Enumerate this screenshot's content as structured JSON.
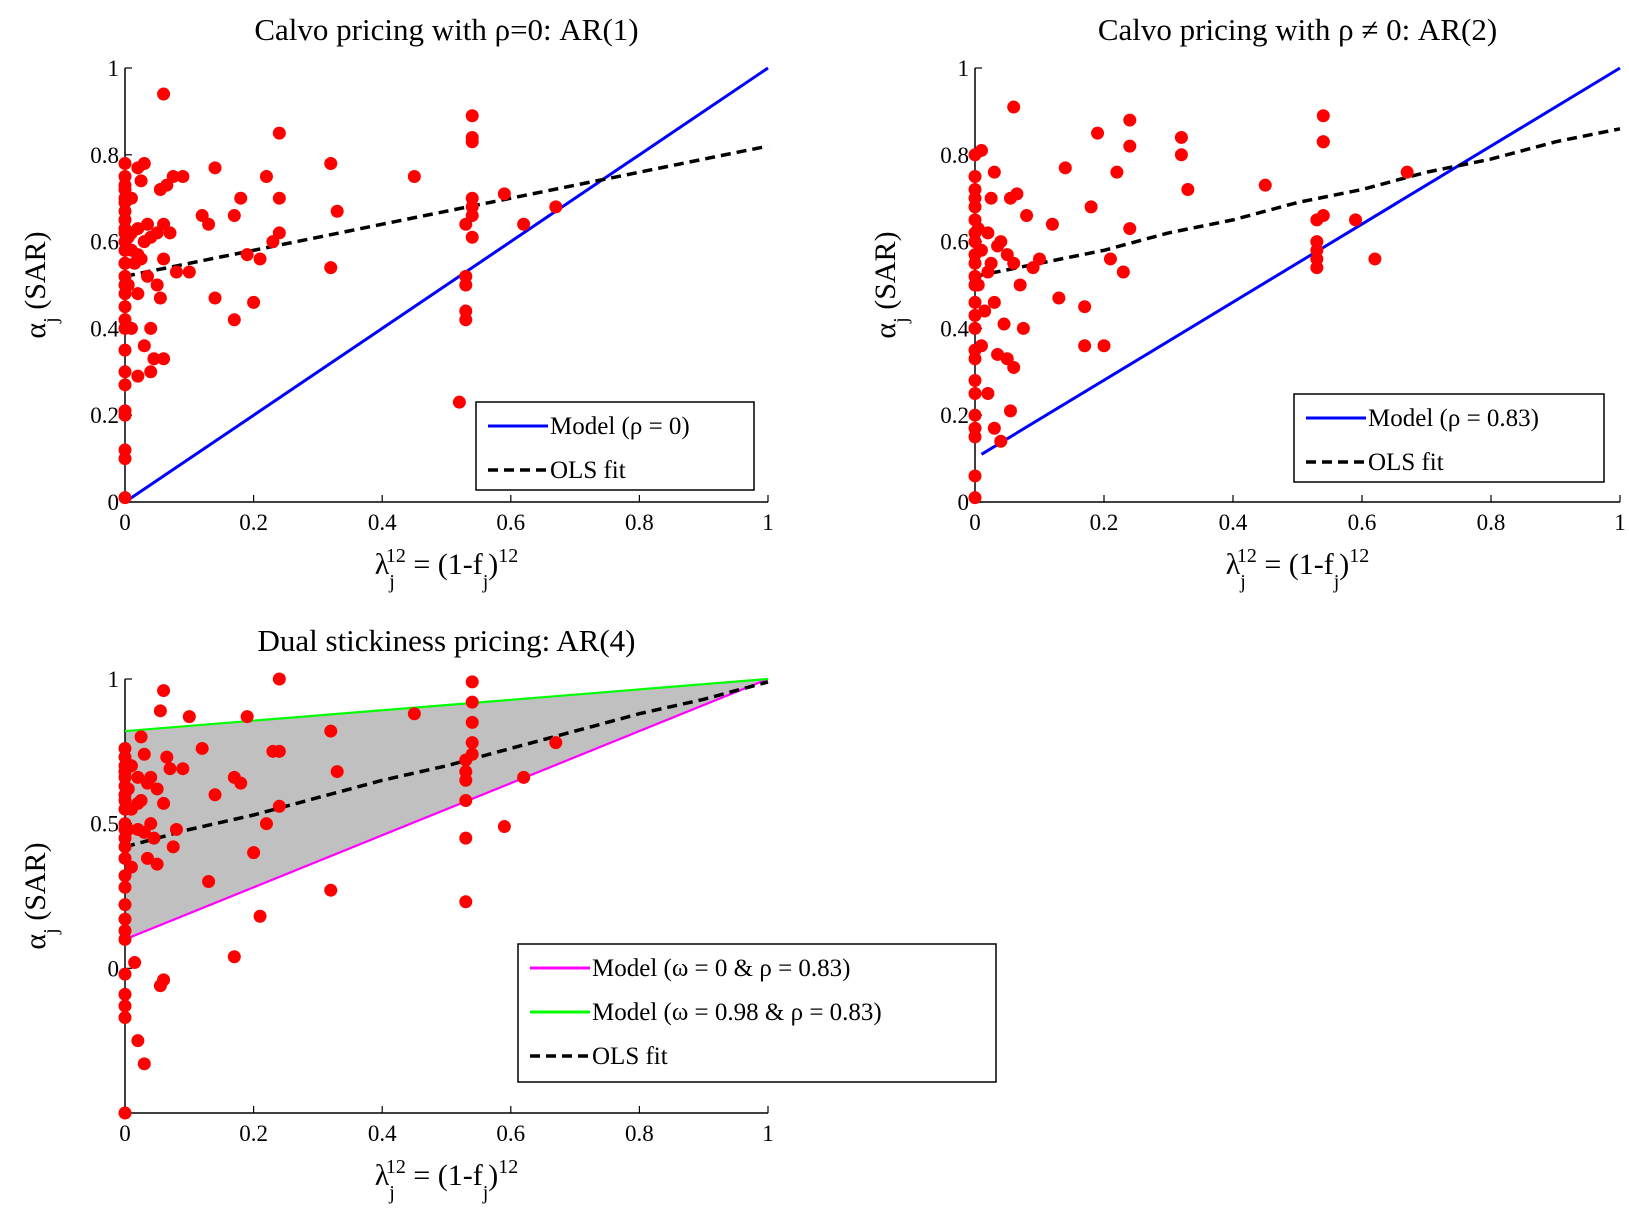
{
  "chart_data": [
    {
      "type": "scatter",
      "title": "Calvo pricing with ρ=0: AR(1)",
      "xlabel": {
        "sym": "λ",
        "sub": "j",
        "sup": "12",
        "mid": " = (1-f",
        "sub2": "j",
        "end": ")",
        "sup2": "12"
      },
      "ylabel": {
        "sym": "α",
        "sub": "j",
        "rest": " (SAR)"
      },
      "xlim": [
        0,
        1
      ],
      "ylim": [
        0,
        1
      ],
      "xticks": [
        "0",
        "0.2",
        "0.4",
        "0.6",
        "0.8",
        "1"
      ],
      "yticks": [
        "0",
        "0.2",
        "0.4",
        "0.6",
        "0.8",
        "1"
      ],
      "legend_position": "lower-right",
      "series": [
        {
          "name": "Model (ρ = 0)",
          "kind": "line",
          "color": "#0000ff",
          "x": [
            0,
            1
          ],
          "y": [
            0,
            1
          ]
        },
        {
          "name": "OLS fit",
          "kind": "dashed",
          "color": "#000000",
          "x": [
            0,
            0.1,
            0.2,
            0.3,
            0.4,
            0.5,
            0.6,
            0.7,
            0.8,
            0.9,
            1.0
          ],
          "y": [
            0.52,
            0.55,
            0.58,
            0.61,
            0.64,
            0.67,
            0.7,
            0.73,
            0.76,
            0.79,
            0.82
          ]
        },
        {
          "name": "",
          "kind": "points",
          "color": "#ff0000",
          "x": [
            0,
            0,
            0,
            0,
            0,
            0,
            0,
            0,
            0,
            0,
            0,
            0,
            0,
            0,
            0,
            0,
            0,
            0,
            0,
            0,
            0,
            0,
            0,
            0,
            0,
            0,
            0,
            0,
            0.005,
            0.005,
            0.01,
            0.01,
            0.01,
            0.01,
            0.015,
            0.02,
            0.02,
            0.02,
            0.02,
            0.02,
            0.025,
            0.025,
            0.03,
            0.03,
            0.03,
            0.035,
            0.035,
            0.04,
            0.04,
            0.04,
            0.045,
            0.05,
            0.05,
            0.055,
            0.055,
            0.06,
            0.06,
            0.06,
            0.06,
            0.065,
            0.07,
            0.075,
            0.08,
            0.09,
            0.1,
            0.12,
            0.13,
            0.14,
            0.14,
            0.17,
            0.17,
            0.18,
            0.19,
            0.2,
            0.21,
            0.22,
            0.23,
            0.24,
            0.24,
            0.24,
            0.32,
            0.32,
            0.33,
            0.45,
            0.52,
            0.53,
            0.53,
            0.53,
            0.53,
            0.53,
            0.54,
            0.54,
            0.54,
            0.54,
            0.54,
            0.54,
            0.54,
            0.59,
            0.62,
            0.67
          ],
          "y": [
            0.01,
            0.1,
            0.12,
            0.2,
            0.21,
            0.27,
            0.3,
            0.35,
            0.4,
            0.42,
            0.48,
            0.5,
            0.52,
            0.55,
            0.58,
            0.6,
            0.62,
            0.65,
            0.67,
            0.7,
            0.72,
            0.75,
            0.78,
            0.45,
            0.55,
            0.63,
            0.69,
            0.73,
            0.5,
            0.61,
            0.4,
            0.58,
            0.62,
            0.7,
            0.55,
            0.29,
            0.48,
            0.57,
            0.63,
            0.77,
            0.56,
            0.74,
            0.36,
            0.6,
            0.78,
            0.52,
            0.64,
            0.3,
            0.4,
            0.61,
            0.33,
            0.5,
            0.62,
            0.47,
            0.72,
            0.33,
            0.56,
            0.64,
            0.94,
            0.73,
            0.62,
            0.75,
            0.53,
            0.75,
            0.53,
            0.66,
            0.64,
            0.47,
            0.77,
            0.42,
            0.66,
            0.7,
            0.57,
            0.46,
            0.56,
            0.75,
            0.6,
            0.62,
            0.7,
            0.85,
            0.54,
            0.78,
            0.67,
            0.75,
            0.23,
            0.42,
            0.44,
            0.5,
            0.52,
            0.64,
            0.61,
            0.66,
            0.68,
            0.7,
            0.83,
            0.84,
            0.89,
            0.71,
            0.64,
            0.68
          ]
        }
      ]
    },
    {
      "type": "scatter",
      "title": "Calvo pricing with ρ ≠ 0: AR(2)",
      "xlabel": {
        "sym": "λ",
        "sub": "j",
        "sup": "12",
        "mid": " = (1-f",
        "sub2": "j",
        "end": ")",
        "sup2": "12"
      },
      "ylabel": {
        "sym": "α",
        "sub": "j",
        "rest": " (SAR)"
      },
      "xlim": [
        0,
        1
      ],
      "ylim": [
        0,
        1
      ],
      "xticks": [
        "0",
        "0.2",
        "0.4",
        "0.6",
        "0.8",
        "1"
      ],
      "yticks": [
        "0",
        "0.2",
        "0.4",
        "0.6",
        "0.8",
        "1"
      ],
      "legend_position": "lower-right",
      "series": [
        {
          "name": "Model (ρ = 0.83)",
          "kind": "line",
          "color": "#0000ff",
          "x": [
            0.01,
            1
          ],
          "y": [
            0.11,
            1
          ]
        },
        {
          "name": "OLS fit",
          "kind": "dashed",
          "color": "#000000",
          "x": [
            0,
            0.1,
            0.2,
            0.3,
            0.4,
            0.5,
            0.6,
            0.7,
            0.8,
            0.9,
            1.0
          ],
          "y": [
            0.52,
            0.55,
            0.58,
            0.62,
            0.65,
            0.69,
            0.72,
            0.76,
            0.79,
            0.83,
            0.86
          ]
        },
        {
          "name": "",
          "kind": "points",
          "color": "#ff0000",
          "x": [
            0,
            0,
            0,
            0,
            0,
            0,
            0,
            0,
            0,
            0,
            0,
            0,
            0,
            0,
            0,
            0,
            0,
            0,
            0,
            0,
            0,
            0,
            0,
            0,
            0.005,
            0.005,
            0.01,
            0.01,
            0.01,
            0.015,
            0.02,
            0.02,
            0.02,
            0.025,
            0.025,
            0.03,
            0.03,
            0.03,
            0.035,
            0.035,
            0.04,
            0.04,
            0.045,
            0.05,
            0.05,
            0.055,
            0.055,
            0.06,
            0.06,
            0.06,
            0.065,
            0.07,
            0.075,
            0.08,
            0.09,
            0.1,
            0.12,
            0.13,
            0.14,
            0.17,
            0.17,
            0.18,
            0.19,
            0.2,
            0.21,
            0.22,
            0.23,
            0.24,
            0.24,
            0.24,
            0.32,
            0.32,
            0.33,
            0.45,
            0.53,
            0.53,
            0.53,
            0.53,
            0.53,
            0.54,
            0.54,
            0.54,
            0.54,
            0.59,
            0.62,
            0.67
          ],
          "y": [
            0.01,
            0.06,
            0.15,
            0.17,
            0.2,
            0.25,
            0.28,
            0.33,
            0.35,
            0.4,
            0.43,
            0.46,
            0.5,
            0.52,
            0.55,
            0.57,
            0.6,
            0.62,
            0.65,
            0.68,
            0.7,
            0.72,
            0.75,
            0.8,
            0.5,
            0.63,
            0.36,
            0.58,
            0.81,
            0.44,
            0.25,
            0.53,
            0.62,
            0.55,
            0.7,
            0.17,
            0.46,
            0.76,
            0.34,
            0.59,
            0.14,
            0.6,
            0.41,
            0.33,
            0.57,
            0.21,
            0.7,
            0.31,
            0.55,
            0.91,
            0.71,
            0.5,
            0.4,
            0.66,
            0.54,
            0.56,
            0.64,
            0.47,
            0.77,
            0.36,
            0.45,
            0.68,
            0.85,
            0.36,
            0.56,
            0.76,
            0.53,
            0.63,
            0.82,
            0.88,
            0.84,
            0.8,
            0.72,
            0.73,
            0.54,
            0.56,
            0.58,
            0.6,
            0.65,
            0.66,
            0.83,
            0.83,
            0.89,
            0.65,
            0.56,
            0.76
          ]
        }
      ]
    },
    {
      "type": "scatter",
      "title": "Dual stickiness pricing: AR(4)",
      "xlabel": {
        "sym": "λ",
        "sub": "j",
        "sup": "12",
        "mid": " = (1-f",
        "sub2": "j",
        "end": ")",
        "sup2": "12"
      },
      "ylabel": {
        "sym": "α",
        "sub": "j",
        "rest": " (SAR)"
      },
      "xlim": [
        0,
        1
      ],
      "ylim": [
        -0.5,
        1
      ],
      "xticks": [
        "0",
        "0.2",
        "0.4",
        "0.6",
        "0.8",
        "1"
      ],
      "yticks": [
        "0",
        "0.5",
        "1"
      ],
      "legend_position": "lower-right",
      "band": {
        "color": "#c0c0c0",
        "x": [
          0,
          1
        ],
        "lower": [
          0.1,
          1
        ],
        "upper": [
          0.82,
          1
        ]
      },
      "series": [
        {
          "name": "Model (ω = 0 & ρ = 0.83)",
          "kind": "line",
          "color": "#ff00ff",
          "x": [
            0,
            1
          ],
          "y": [
            0.1,
            1
          ]
        },
        {
          "name": "Model (ω = 0.98 & ρ = 0.83)",
          "kind": "line",
          "color": "#00ff00",
          "x": [
            0,
            1
          ],
          "y": [
            0.82,
            1
          ]
        },
        {
          "name": "OLS fit",
          "kind": "dashed",
          "color": "#000000",
          "x": [
            0,
            0.1,
            0.2,
            0.3,
            0.4,
            0.5,
            0.6,
            0.7,
            0.8,
            0.9,
            1.0
          ],
          "y": [
            0.42,
            0.48,
            0.53,
            0.59,
            0.65,
            0.7,
            0.76,
            0.82,
            0.88,
            0.93,
            0.99
          ]
        },
        {
          "name": "",
          "kind": "points",
          "color": "#ff0000",
          "x": [
            0,
            0,
            0,
            0,
            0,
            0,
            0,
            0,
            0,
            0,
            0,
            0,
            0,
            0,
            0,
            0,
            0,
            0,
            0,
            0,
            0,
            0,
            0,
            0,
            0,
            0.005,
            0.005,
            0.01,
            0.01,
            0.01,
            0.015,
            0.02,
            0.02,
            0.02,
            0.02,
            0.025,
            0.025,
            0.03,
            0.03,
            0.03,
            0.035,
            0.035,
            0.04,
            0.04,
            0.045,
            0.05,
            0.05,
            0.055,
            0.055,
            0.06,
            0.06,
            0.06,
            0.065,
            0.07,
            0.075,
            0.08,
            0.09,
            0.1,
            0.12,
            0.13,
            0.14,
            0.17,
            0.17,
            0.18,
            0.19,
            0.2,
            0.21,
            0.22,
            0.23,
            0.24,
            0.24,
            0.24,
            0.32,
            0.32,
            0.33,
            0.45,
            0.53,
            0.53,
            0.53,
            0.53,
            0.53,
            0.53,
            0.54,
            0.54,
            0.54,
            0.54,
            0.54,
            0.59,
            0.62,
            0.67
          ],
          "y": [
            -0.5,
            -0.17,
            -0.13,
            -0.09,
            -0.02,
            0.1,
            0.13,
            0.17,
            0.22,
            0.28,
            0.32,
            0.38,
            0.42,
            0.45,
            0.48,
            0.5,
            0.55,
            0.58,
            0.6,
            0.63,
            0.66,
            0.68,
            0.7,
            0.73,
            0.76,
            0.48,
            0.62,
            0.35,
            0.55,
            0.7,
            0.02,
            -0.25,
            0.48,
            0.57,
            0.66,
            0.58,
            0.8,
            -0.33,
            0.47,
            0.74,
            0.38,
            0.64,
            0.5,
            0.66,
            0.45,
            0.36,
            0.62,
            -0.06,
            0.89,
            -0.04,
            0.57,
            0.96,
            0.73,
            0.69,
            0.42,
            0.48,
            0.69,
            0.87,
            0.76,
            0.3,
            0.6,
            0.66,
            0.04,
            0.64,
            0.87,
            0.4,
            0.18,
            0.5,
            0.75,
            0.75,
            0.56,
            1.0,
            0.27,
            0.82,
            0.68,
            0.88,
            0.23,
            0.45,
            0.58,
            0.65,
            0.68,
            0.72,
            0.74,
            0.78,
            0.85,
            0.92,
            0.99,
            0.49,
            0.66,
            0.78
          ]
        }
      ]
    }
  ]
}
